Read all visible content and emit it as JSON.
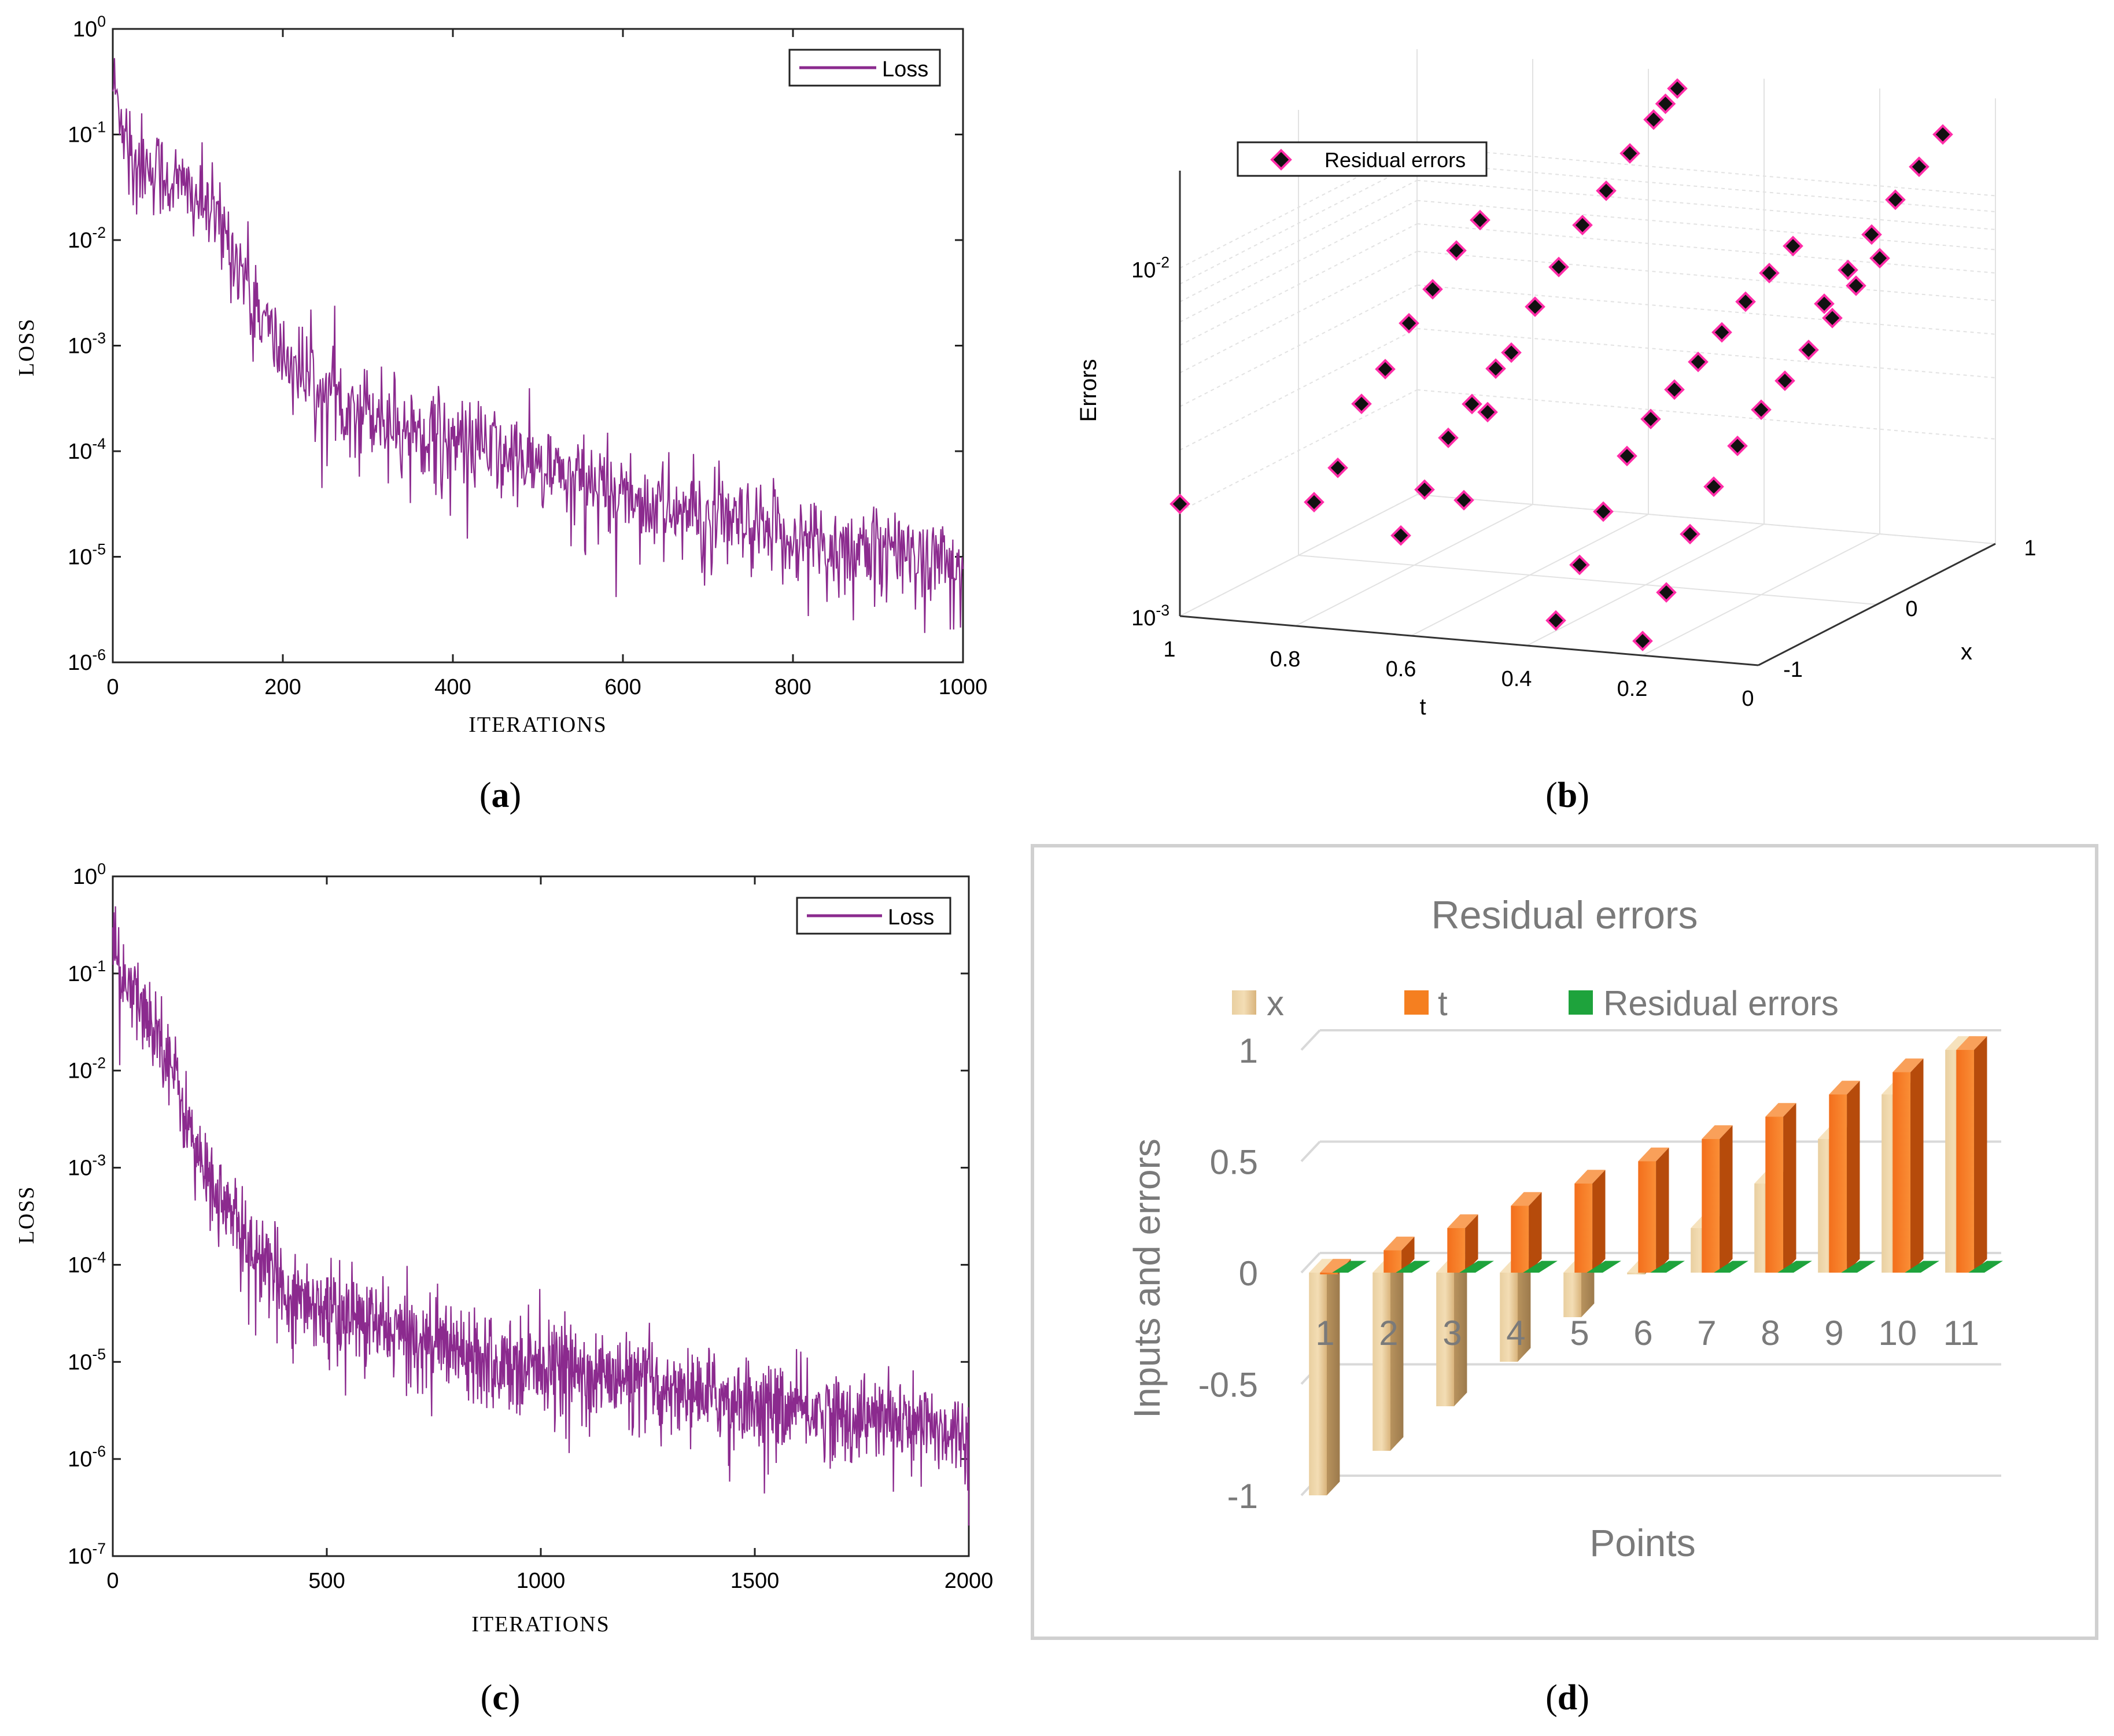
{
  "chart_data": [
    {
      "id": "a",
      "type": "line",
      "panel_label": "a",
      "xlabel": "ITERATIONS",
      "ylabel": "LOSS",
      "yscale": "log",
      "xlim": [
        0,
        1000
      ],
      "ylim": [
        1e-06,
        1
      ],
      "x_ticks": [
        "0",
        "200",
        "400",
        "600",
        "800",
        "1000"
      ],
      "y_ticks": [
        {
          "base": "10",
          "exp": "-6"
        },
        {
          "base": "10",
          "exp": "-5"
        },
        {
          "base": "10",
          "exp": "-4"
        },
        {
          "base": "10",
          "exp": "-3"
        },
        {
          "base": "10",
          "exp": "-2"
        },
        {
          "base": "10",
          "exp": "-1"
        },
        {
          "base": "10",
          "exp": "0"
        }
      ],
      "legend": "Loss",
      "legend_position": "top-right",
      "color": "#8B2A8E",
      "series": [
        {
          "name": "Loss",
          "x": [
            0,
            10,
            30,
            60,
            100,
            130,
            160,
            180,
            200,
            230,
            260,
            300,
            350,
            400,
            450,
            500,
            550,
            600,
            650,
            700,
            750,
            800,
            850,
            900,
            950,
            1000
          ],
          "y": [
            0.3,
            0.15,
            0.06,
            0.04,
            0.025,
            0.012,
            0.004,
            0.0015,
            0.0008,
            0.0005,
            0.00035,
            0.00025,
            0.00018,
            0.00013,
            0.0001,
            7e-05,
            5e-05,
            4e-05,
            3e-05,
            2.2e-05,
            1.8e-05,
            1.5e-05,
            1.3e-05,
            1.2e-05,
            1.1e-05,
            8e-06
          ]
        }
      ]
    },
    {
      "id": "b",
      "type": "scatter",
      "panel_label": "b",
      "xlabel": "t",
      "ylabel": "x",
      "zlabel": "Errors",
      "zscale": "log",
      "t_ticks": [
        "1",
        "0.8",
        "0.6",
        "0.4",
        "0.2",
        "0"
      ],
      "x_ticks": [
        "-1",
        "0",
        "1"
      ],
      "z_ticks": [
        {
          "base": "10",
          "exp": "-3"
        },
        {
          "base": "10",
          "exp": "-2"
        }
      ],
      "legend": "Residual errors",
      "legend_position": "top-left",
      "marker": "diamond",
      "marker_color": "#111111",
      "marker_edge": "#FF2DA8",
      "points": [
        {
          "t": 1.0,
          "x": -1.0,
          "e": 0.0021
        },
        {
          "t": 0.85,
          "x": -0.6,
          "e": 0.0019
        },
        {
          "t": 0.85,
          "x": -0.4,
          "e": 0.0022
        },
        {
          "t": 0.85,
          "x": -0.2,
          "e": 0.0031
        },
        {
          "t": 0.85,
          "x": 0.0,
          "e": 0.0036
        },
        {
          "t": 0.85,
          "x": 0.2,
          "e": 0.0045
        },
        {
          "t": 0.85,
          "x": 0.4,
          "e": 0.0052
        },
        {
          "t": 0.85,
          "x": 0.6,
          "e": 0.0062
        },
        {
          "t": 0.85,
          "x": 0.8,
          "e": 0.007
        },
        {
          "t": 0.7,
          "x": -0.6,
          "e": 0.0016
        },
        {
          "t": 0.7,
          "x": -0.4,
          "e": 0.002
        },
        {
          "t": 0.7,
          "x": -0.2,
          "e": 0.0026
        },
        {
          "t": 0.7,
          "x": 0.0,
          "e": 0.003
        },
        {
          "t": 0.7,
          "x": 0.2,
          "e": 0.0035
        },
        {
          "t": 0.55,
          "x": -0.8,
          "e": 0.0023
        },
        {
          "t": 0.55,
          "x": -0.6,
          "e": 0.0038
        },
        {
          "t": 0.55,
          "x": -0.4,
          "e": 0.0052
        },
        {
          "t": 0.55,
          "x": -0.2,
          "e": 0.0065
        },
        {
          "t": 0.55,
          "x": 0.0,
          "e": 0.0078
        },
        {
          "t": 0.55,
          "x": 0.2,
          "e": 0.0095
        },
        {
          "t": 0.55,
          "x": 0.4,
          "e": 0.011
        },
        {
          "t": 0.55,
          "x": 0.6,
          "e": 0.013
        },
        {
          "t": 0.55,
          "x": 0.8,
          "e": 0.015
        },
        {
          "t": 0.55,
          "x": 0.9,
          "e": 0.016
        },
        {
          "t": 0.55,
          "x": 1.0,
          "e": 0.017
        },
        {
          "t": 0.35,
          "x": -1.0,
          "e": 0.0012
        },
        {
          "t": 0.35,
          "x": -0.8,
          "e": 0.0016
        },
        {
          "t": 0.35,
          "x": -0.6,
          "e": 0.0021
        },
        {
          "t": 0.35,
          "x": -0.4,
          "e": 0.0028
        },
        {
          "t": 0.35,
          "x": -0.2,
          "e": 0.0033
        },
        {
          "t": 0.35,
          "x": 0.0,
          "e": 0.0037
        },
        {
          "t": 0.35,
          "x": 0.2,
          "e": 0.0041
        },
        {
          "t": 0.35,
          "x": 0.4,
          "e": 0.0046
        },
        {
          "t": 0.35,
          "x": 0.6,
          "e": 0.0052
        },
        {
          "t": 0.35,
          "x": 0.8,
          "e": 0.0058
        },
        {
          "t": 0.35,
          "x": 1.0,
          "e": 0.0064
        },
        {
          "t": 0.2,
          "x": -1.0,
          "e": 0.0011
        },
        {
          "t": 0.2,
          "x": -0.8,
          "e": 0.0014
        },
        {
          "t": 0.2,
          "x": -0.6,
          "e": 0.0019
        },
        {
          "t": 0.2,
          "x": -0.4,
          "e": 0.0024
        },
        {
          "t": 0.2,
          "x": -0.2,
          "e": 0.0029
        },
        {
          "t": 0.2,
          "x": 0.0,
          "e": 0.0034
        },
        {
          "t": 0.2,
          "x": 0.2,
          "e": 0.0038
        },
        {
          "t": 0.2,
          "x": 0.4,
          "e": 0.0043
        },
        {
          "t": 0.2,
          "x": 0.6,
          "e": 0.0049
        },
        {
          "t": 0.2,
          "x": 0.8,
          "e": 0.0056
        },
        {
          "t": 0.2,
          "x": 1.0,
          "e": 0.0062
        },
        {
          "t": 0.05,
          "x": -0.2,
          "e": 0.0078
        },
        {
          "t": 0.05,
          "x": 0.0,
          "e": 0.009
        },
        {
          "t": 0.05,
          "x": 0.2,
          "e": 0.0105
        },
        {
          "t": 0.05,
          "x": 0.4,
          "e": 0.0122
        },
        {
          "t": 0.05,
          "x": 0.6,
          "e": 0.014
        },
        {
          "t": 0.05,
          "x": 0.8,
          "e": 0.016
        }
      ]
    },
    {
      "id": "c",
      "type": "line",
      "panel_label": "c",
      "xlabel": "ITERATIONS",
      "ylabel": "LOSS",
      "yscale": "log",
      "xlim": [
        0,
        2000
      ],
      "ylim": [
        1e-07,
        1
      ],
      "x_ticks": [
        "0",
        "500",
        "1000",
        "1500",
        "2000"
      ],
      "y_ticks": [
        {
          "base": "10",
          "exp": "-7"
        },
        {
          "base": "10",
          "exp": "-6"
        },
        {
          "base": "10",
          "exp": "-5"
        },
        {
          "base": "10",
          "exp": "-4"
        },
        {
          "base": "10",
          "exp": "-3"
        },
        {
          "base": "10",
          "exp": "-2"
        },
        {
          "base": "10",
          "exp": "-1"
        },
        {
          "base": "10",
          "exp": "0"
        }
      ],
      "legend": "Loss",
      "legend_position": "top-right",
      "color": "#8B2A8E",
      "series": [
        {
          "name": "Loss",
          "x": [
            0,
            20,
            60,
            120,
            160,
            200,
            250,
            300,
            350,
            400,
            500,
            600,
            700,
            800,
            900,
            1000,
            1100,
            1200,
            1300,
            1400,
            1500,
            1600,
            1700,
            1800,
            1900,
            2000
          ],
          "y": [
            0.2,
            0.08,
            0.05,
            0.02,
            0.005,
            0.0012,
            0.0005,
            0.00022,
            0.0001,
            6e-05,
            3.5e-05,
            2.5e-05,
            1.8e-05,
            1.5e-05,
            1.2e-05,
            1e-05,
            8e-06,
            6.5e-06,
            5.5e-06,
            4.5e-06,
            3.8e-06,
            3.2e-06,
            2.8e-06,
            2.5e-06,
            2.2e-06,
            1.8e-06
          ]
        }
      ]
    },
    {
      "id": "d",
      "type": "bar",
      "panel_label": "d",
      "title": "Residual errors",
      "xlabel": "Points",
      "ylabel": "Inputs and errors",
      "ylim": [
        -1,
        1
      ],
      "y_ticks": [
        "1",
        "0.5",
        "0",
        "-0.5",
        "-1"
      ],
      "categories": [
        "1",
        "2",
        "3",
        "4",
        "5",
        "6",
        "7",
        "8",
        "9",
        "10",
        "11"
      ],
      "series": [
        {
          "name": "x",
          "color": "#E8C98F",
          "values": [
            -1.0,
            -0.8,
            -0.6,
            -0.4,
            -0.2,
            0.0,
            0.2,
            0.4,
            0.6,
            0.8,
            1.0
          ]
        },
        {
          "name": "t",
          "color": "#F57F20",
          "values": [
            0.0,
            0.1,
            0.2,
            0.3,
            0.4,
            0.5,
            0.6,
            0.7,
            0.8,
            0.9,
            1.0
          ]
        },
        {
          "name": "Residual errors",
          "color": "#1EA33C",
          "values": [
            0,
            0,
            0,
            0,
            0,
            0,
            0,
            0,
            0,
            0,
            0
          ]
        }
      ]
    }
  ]
}
